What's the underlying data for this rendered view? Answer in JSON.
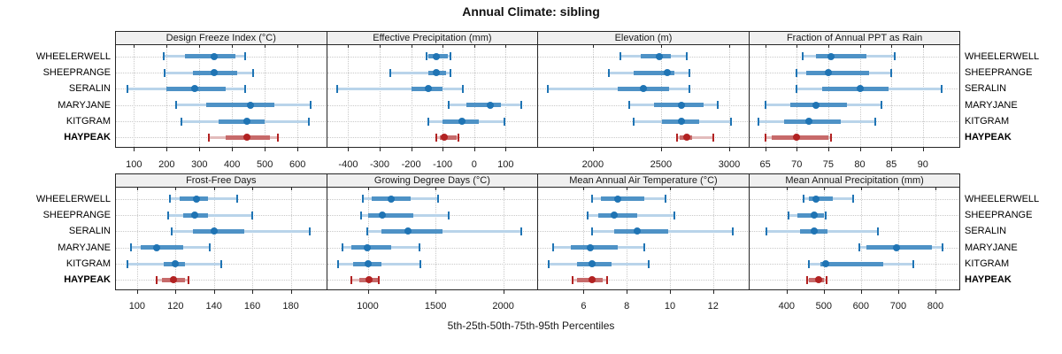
{
  "title": "Annual Climate: sibling",
  "caption": "5th-25th-50th-75th-95th Percentiles",
  "sites": [
    "WHEELERWELL",
    "SHEEPRANGE",
    "SERALIN",
    "MARYJANE",
    "KITGRAM",
    "HAYPEAK"
  ],
  "highlight_site": "HAYPEAK",
  "colors": {
    "blue": "#1f74b4",
    "blue_mid": "#4e92c6",
    "blue_light": "#b9d4ea",
    "red": "#b22222",
    "red_mid": "#c76a6a",
    "red_light": "#e2bcbc",
    "grid": "#c9c9c9",
    "header_bg": "#f0f0f0",
    "border": "#262626"
  },
  "chart_data": {
    "type": "percentile-dotplot",
    "percentiles": [
      5,
      25,
      50,
      75,
      95
    ],
    "legend_note": "values per site are [5th, 25th, 50th, 75th, 95th] percentiles",
    "site_order": [
      "WHEELERWELL",
      "SHEEPRANGE",
      "SERALIN",
      "MARYJANE",
      "KITGRAM",
      "HAYPEAK"
    ],
    "panels": [
      {
        "title": "Design Freeze Index (°C)",
        "grid_row": 0,
        "grid_col": 0,
        "xlim": [
          45,
          685
        ],
        "ticks": [
          100,
          200,
          300,
          400,
          500,
          600
        ],
        "series": [
          [
            190,
            255,
            345,
            410,
            440
          ],
          [
            195,
            280,
            345,
            415,
            465
          ],
          [
            80,
            200,
            285,
            380,
            440
          ],
          [
            230,
            320,
            455,
            530,
            640
          ],
          [
            245,
            360,
            445,
            500,
            635
          ],
          [
            330,
            380,
            445,
            515,
            540
          ]
        ]
      },
      {
        "title": "Effective Precipitation (mm)",
        "grid_row": 0,
        "grid_col": 1,
        "xlim": [
          -467,
          198
        ],
        "ticks": [
          -400,
          -300,
          -200,
          -100,
          0,
          100
        ],
        "series": [
          [
            -150,
            -145,
            -120,
            -85,
            -75
          ],
          [
            -265,
            -145,
            -120,
            -90,
            -75
          ],
          [
            -435,
            -200,
            -145,
            -100,
            -35
          ],
          [
            -80,
            -25,
            50,
            85,
            150
          ],
          [
            -145,
            -100,
            -40,
            15,
            95
          ],
          [
            -120,
            -110,
            -95,
            -55,
            -50
          ]
        ]
      },
      {
        "title": "Elevation (m)",
        "grid_row": 0,
        "grid_col": 2,
        "xlim": [
          1600,
          3135
        ],
        "ticks": [
          2000,
          2500,
          3000
        ],
        "series": [
          [
            2200,
            2350,
            2490,
            2570,
            2690
          ],
          [
            2120,
            2300,
            2545,
            2600,
            2710
          ],
          [
            1670,
            2180,
            2370,
            2560,
            2710
          ],
          [
            2270,
            2450,
            2650,
            2810,
            2915
          ],
          [
            2300,
            2510,
            2650,
            2780,
            3010
          ],
          [
            2620,
            2635,
            2690,
            2725,
            2885
          ]
        ]
      },
      {
        "title": "Fraction of Annual PPT as Rain",
        "grid_row": 0,
        "grid_col": 3,
        "xlim": [
          62.5,
          95.7
        ],
        "ticks": [
          65,
          70,
          75,
          80,
          85,
          90
        ],
        "series": [
          [
            71,
            73,
            75.5,
            81,
            85.5
          ],
          [
            70,
            71.5,
            75,
            81.5,
            85
          ],
          [
            70,
            74,
            80,
            84.5,
            93
          ],
          [
            65,
            69,
            73,
            78,
            83.5
          ],
          [
            64,
            68,
            72,
            77,
            82.5
          ],
          [
            65,
            66,
            70,
            75,
            75.5
          ]
        ]
      },
      {
        "title": "Frost-Free Days",
        "grid_row": 1,
        "grid_col": 0,
        "xlim": [
          89,
          198
        ],
        "ticks": [
          100,
          120,
          140,
          160,
          180
        ],
        "series": [
          [
            117,
            122,
            131,
            137,
            152
          ],
          [
            116,
            124,
            130,
            137,
            160
          ],
          [
            118,
            129,
            140,
            156,
            190
          ],
          [
            97,
            102,
            110,
            124,
            138
          ],
          [
            95,
            114,
            120,
            125,
            144
          ],
          [
            110,
            113,
            119,
            125,
            127
          ]
        ]
      },
      {
        "title": "Growing Degree Days (°C)",
        "grid_row": 1,
        "grid_col": 1,
        "xlim": [
          700,
          2245
        ],
        "ticks": [
          1000,
          1500,
          2000
        ],
        "series": [
          [
            965,
            1030,
            1175,
            1315,
            1520
          ],
          [
            950,
            1000,
            1110,
            1335,
            1600
          ],
          [
            995,
            1100,
            1295,
            1550,
            2130
          ],
          [
            815,
            880,
            995,
            1175,
            1380
          ],
          [
            780,
            890,
            1005,
            1100,
            1390
          ],
          [
            880,
            935,
            1010,
            1075,
            1080
          ]
        ]
      },
      {
        "title": "Mean Annual Air Temperature (°C)",
        "grid_row": 1,
        "grid_col": 2,
        "xlim": [
          3.9,
          13.6
        ],
        "ticks": [
          6,
          8,
          10,
          12
        ],
        "series": [
          [
            6.4,
            6.8,
            7.6,
            8.8,
            9.8
          ],
          [
            6.2,
            6.7,
            7.4,
            8.5,
            10.2
          ],
          [
            6.4,
            7.4,
            8.5,
            9.9,
            12.9
          ],
          [
            4.6,
            5.4,
            6.3,
            7.6,
            8.8
          ],
          [
            4.4,
            5.7,
            6.4,
            7.3,
            9.0
          ],
          [
            5.5,
            5.7,
            6.4,
            6.9,
            7.1
          ]
        ]
      },
      {
        "title": "Mean Annual Precipitation (mm)",
        "grid_row": 1,
        "grid_col": 3,
        "xlim": [
          300,
          863
        ],
        "ticks": [
          400,
          500,
          600,
          700,
          800
        ],
        "series": [
          [
            445,
            460,
            480,
            525,
            580
          ],
          [
            405,
            430,
            475,
            500,
            505
          ],
          [
            345,
            435,
            475,
            510,
            645
          ],
          [
            595,
            615,
            695,
            790,
            820
          ],
          [
            460,
            490,
            505,
            660,
            740
          ],
          [
            455,
            460,
            485,
            500,
            507
          ]
        ]
      }
    ]
  }
}
